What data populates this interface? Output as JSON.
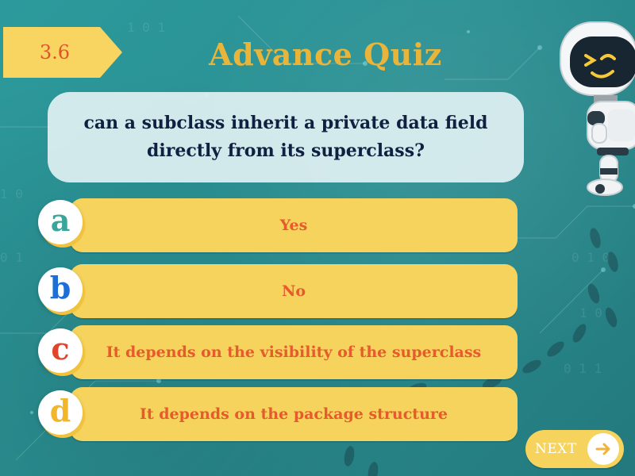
{
  "badge": {
    "number": "3.6"
  },
  "header": {
    "title": "Advance Quiz"
  },
  "question": {
    "text": "can a subclass inherit a private data field directly from its superclass?"
  },
  "options": [
    {
      "letter": "a",
      "letter_color": "#3aa59a",
      "label": "Yes"
    },
    {
      "letter": "b",
      "letter_color": "#1b6fd6",
      "label": "No"
    },
    {
      "letter": "c",
      "letter_color": "#e0452b",
      "label": "It depends on the visibility of the superclass"
    },
    {
      "letter": "d",
      "letter_color": "#f2b62b",
      "label": "It depends on the package structure"
    }
  ],
  "navigation": {
    "next_label": "NEXT"
  },
  "colors": {
    "background": "#2a8f92",
    "accent_yellow": "#f6d35c",
    "title": "#e8b53a",
    "option_text": "#e65a2e"
  },
  "icons": {
    "next": "arrow-right-icon",
    "mascot": "robot-mascot"
  }
}
